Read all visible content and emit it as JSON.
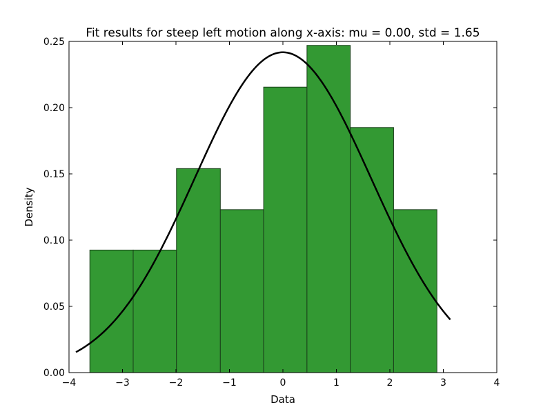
{
  "chart_data": {
    "type": "bar",
    "title": "Fit results for steep left motion along x-axis: mu = 0.00,  std = 1.65",
    "xlabel": "Data",
    "ylabel": "Density",
    "xlim": [
      -4,
      4
    ],
    "ylim": [
      0,
      0.25
    ],
    "xticks": [
      -4,
      -3,
      -2,
      -1,
      0,
      1,
      2,
      3,
      4
    ],
    "xtick_labels": [
      "−4",
      "−3",
      "−2",
      "−1",
      "0",
      "1",
      "2",
      "3",
      "4"
    ],
    "yticks": [
      0.0,
      0.05,
      0.1,
      0.15,
      0.2,
      0.25
    ],
    "ytick_labels": [
      "0.00",
      "0.05",
      "0.10",
      "0.15",
      "0.20",
      "0.25"
    ],
    "grid": false,
    "bar_color": "#339933",
    "bar_edge_color": "#1a3d1a",
    "curve_color": "#000000",
    "bins": [
      {
        "x0": -3.61,
        "x1": -2.8,
        "density": 0.0925
      },
      {
        "x0": -2.8,
        "x1": -1.99,
        "density": 0.0925
      },
      {
        "x0": -1.99,
        "x1": -1.17,
        "density": 0.154
      },
      {
        "x0": -1.17,
        "x1": -0.36,
        "density": 0.123
      },
      {
        "x0": -0.36,
        "x1": 0.45,
        "density": 0.2155
      },
      {
        "x0": 0.45,
        "x1": 1.26,
        "density": 0.247
      },
      {
        "x0": 1.26,
        "x1": 2.07,
        "density": 0.185
      },
      {
        "x0": 2.07,
        "x1": 2.88,
        "density": 0.123
      }
    ],
    "fit_curve": {
      "mu": 0.0,
      "std": 1.65,
      "x_range": [
        -3.87,
        3.13
      ]
    }
  }
}
